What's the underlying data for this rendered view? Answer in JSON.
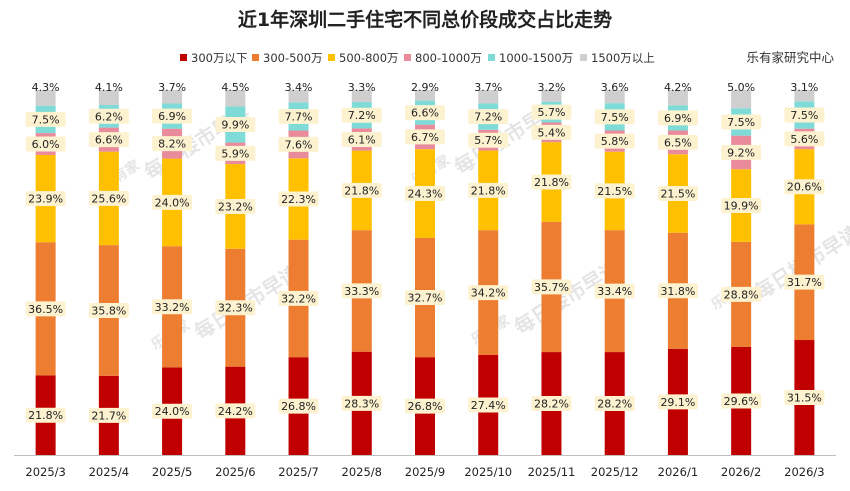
{
  "chart_data": {
    "type": "bar",
    "stacked": true,
    "percent_stacked": true,
    "title": "近1年深圳二手住宅不同总价段成交占比走势",
    "source": "乐有家研究中心",
    "watermark": "每日楼市早读",
    "watermark_logo": "乐有家",
    "legend_position": "top",
    "grid": false,
    "ylim": [
      0,
      100
    ],
    "categories": [
      "2025/3",
      "2025/4",
      "2025/5",
      "2025/6",
      "2025/7",
      "2025/8",
      "2025/9",
      "2025/10",
      "2025/11",
      "2025/12",
      "2026/1",
      "2026/2",
      "2026/3"
    ],
    "series": [
      {
        "name": "300万以下",
        "color": "#c00000",
        "values": [
          21.8,
          21.7,
          24.0,
          24.2,
          26.8,
          28.3,
          26.8,
          27.4,
          28.2,
          28.2,
          29.1,
          29.6,
          31.5
        ]
      },
      {
        "name": "300-500万",
        "color": "#ed7d31",
        "values": [
          36.5,
          35.8,
          33.2,
          32.3,
          32.2,
          33.3,
          32.7,
          34.2,
          35.7,
          33.4,
          31.8,
          28.8,
          31.7
        ]
      },
      {
        "name": "500-800万",
        "color": "#ffc000",
        "values": [
          23.9,
          25.6,
          24.0,
          23.2,
          22.3,
          21.8,
          24.3,
          21.8,
          21.8,
          21.5,
          21.5,
          19.9,
          20.6
        ]
      },
      {
        "name": "800-1000万",
        "color": "#e98b9b",
        "values": [
          6.0,
          6.6,
          8.2,
          5.9,
          7.6,
          6.1,
          6.7,
          5.7,
          5.4,
          5.8,
          6.5,
          9.2,
          5.6
        ]
      },
      {
        "name": "1000-1500万",
        "color": "#7fdbd7",
        "values": [
          7.5,
          6.2,
          6.9,
          9.9,
          7.7,
          7.2,
          6.6,
          7.2,
          5.7,
          7.5,
          6.9,
          7.5,
          7.5
        ]
      },
      {
        "name": "1500万以上",
        "color": "#cfcfcf",
        "values": [
          4.3,
          4.1,
          3.7,
          4.5,
          3.4,
          3.3,
          2.9,
          3.7,
          3.2,
          3.6,
          4.2,
          5.0,
          3.1
        ]
      }
    ]
  }
}
